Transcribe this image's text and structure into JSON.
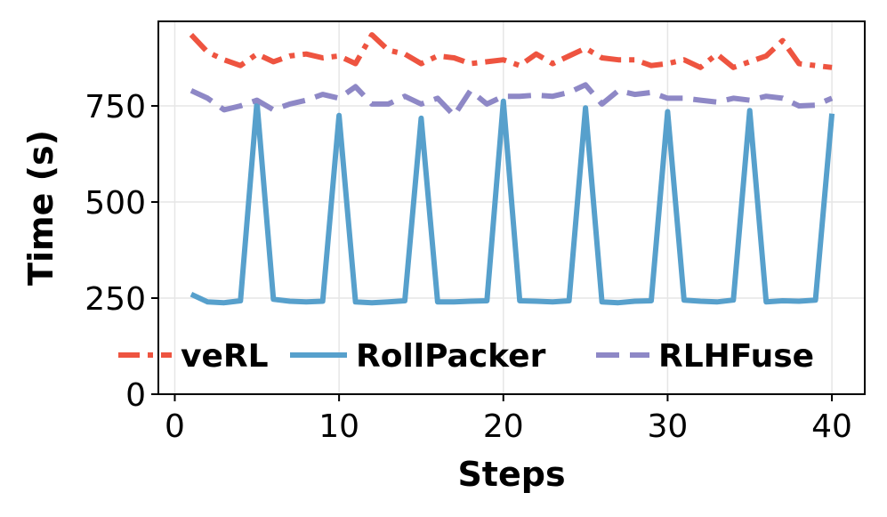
{
  "chart_data": {
    "type": "line",
    "title": "",
    "xlabel": "Steps",
    "ylabel": "Time (s)",
    "xlim": [
      -1,
      42
    ],
    "ylim": [
      0,
      970
    ],
    "xticks": [
      0,
      10,
      20,
      30,
      40
    ],
    "yticks": [
      0,
      250,
      500,
      750
    ],
    "grid": true,
    "legend_position": "lower-center",
    "x": [
      1,
      2,
      3,
      4,
      5,
      6,
      7,
      8,
      9,
      10,
      11,
      12,
      13,
      14,
      15,
      16,
      17,
      18,
      19,
      20,
      21,
      22,
      23,
      24,
      25,
      26,
      27,
      28,
      29,
      30,
      31,
      32,
      33,
      34,
      35,
      36,
      37,
      38,
      39,
      40
    ],
    "series": [
      {
        "name": "veRL",
        "color": "#ee5440",
        "style": "dashdot",
        "values": [
          935,
          890,
          870,
          855,
          885,
          865,
          880,
          885,
          875,
          880,
          860,
          935,
          895,
          885,
          860,
          880,
          875,
          860,
          865,
          870,
          855,
          885,
          860,
          880,
          900,
          875,
          870,
          870,
          855,
          860,
          870,
          850,
          885,
          850,
          865,
          880,
          920,
          860,
          855,
          850
        ]
      },
      {
        "name": "RollPacker",
        "color": "#57a0cc",
        "style": "solid",
        "values": [
          260,
          240,
          238,
          243,
          760,
          247,
          242,
          240,
          242,
          725,
          240,
          238,
          240,
          243,
          718,
          240,
          240,
          242,
          243,
          762,
          243,
          242,
          240,
          243,
          745,
          240,
          238,
          242,
          243,
          735,
          245,
          242,
          240,
          245,
          738,
          240,
          243,
          242,
          245,
          730
        ]
      },
      {
        "name": "RLHFuse",
        "color": "#8e88c6",
        "style": "dashed",
        "values": [
          790,
          770,
          740,
          750,
          765,
          740,
          755,
          765,
          780,
          770,
          800,
          755,
          755,
          775,
          755,
          770,
          725,
          790,
          755,
          775,
          775,
          778,
          775,
          785,
          805,
          755,
          790,
          780,
          785,
          770,
          770,
          765,
          760,
          770,
          765,
          775,
          770,
          750,
          752,
          770
        ]
      }
    ]
  }
}
